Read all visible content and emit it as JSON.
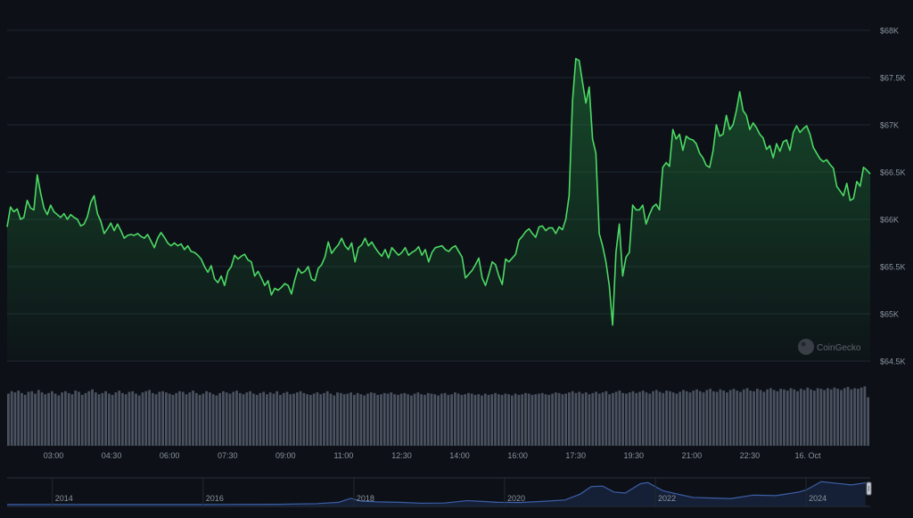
{
  "colors": {
    "background": "#0d1117",
    "grid": "#1f2630",
    "axis_text": "#8a939e",
    "price_line": "#4cd964",
    "price_fill_top": "#1f7a3a",
    "volume_bar": "#4a5260",
    "navigator_line": "#3c5fa8",
    "navigator_fill": "#1a2a4a"
  },
  "watermark": {
    "text": "CoinGecko",
    "icon": "coingecko-logo-icon"
  },
  "chart_data": [
    {
      "type": "line",
      "title": "",
      "xlabel": "",
      "ylabel": "",
      "y_axis_position": "right",
      "ylim": [
        64500,
        68000
      ],
      "y_ticks": [
        64500,
        65000,
        65500,
        66000,
        66500,
        67000,
        67500,
        68000
      ],
      "y_tick_labels": [
        "$64.5K",
        "$65K",
        "$65.5K",
        "$66K",
        "$66.5K",
        "$67K",
        "$67.5K",
        "$68K"
      ],
      "x_tick_labels": [
        "03:00",
        "04:30",
        "06:00",
        "07:30",
        "09:00",
        "11:00",
        "12:30",
        "14:00",
        "16:00",
        "17:30",
        "19:30",
        "21:00",
        "22:30",
        "16. Oct"
      ],
      "grid": true,
      "series": [
        {
          "values": [
            65920,
            66130,
            66080,
            66110,
            66000,
            66020,
            66200,
            66120,
            66100,
            66470,
            66280,
            66120,
            66050,
            66150,
            66080,
            66050,
            66020,
            66060,
            66000,
            66050,
            66020,
            66000,
            65930,
            65950,
            66030,
            66180,
            66250,
            66060,
            65980,
            65850,
            65900,
            65960,
            65880,
            65950,
            65880,
            65800,
            65830,
            65840,
            65830,
            65850,
            65820,
            65800,
            65840,
            65770,
            65700,
            65800,
            65860,
            65810,
            65750,
            65720,
            65750,
            65720,
            65740,
            65680,
            65720,
            65660,
            65650,
            65620,
            65580,
            65500,
            65440,
            65510,
            65370,
            65330,
            65400,
            65300,
            65450,
            65500,
            65620,
            65580,
            65610,
            65630,
            65570,
            65550,
            65400,
            65450,
            65380,
            65300,
            65350,
            65200,
            65270,
            65250,
            65280,
            65320,
            65300,
            65210,
            65360,
            65480,
            65430,
            65450,
            65500,
            65370,
            65350,
            65480,
            65520,
            65600,
            65760,
            65640,
            65690,
            65730,
            65800,
            65720,
            65680,
            65750,
            65550,
            65700,
            65730,
            65800,
            65720,
            65760,
            65700,
            65650,
            65610,
            65680,
            65590,
            65700,
            65660,
            65620,
            65650,
            65700,
            65620,
            65650,
            65670,
            65710,
            65620,
            65680,
            65550,
            65650,
            65700,
            65710,
            65720,
            65680,
            65660,
            65700,
            65720,
            65660,
            65600,
            65380,
            65420,
            65460,
            65520,
            65590,
            65380,
            65300,
            65420,
            65550,
            65520,
            65400,
            65310,
            65580,
            65550,
            65590,
            65630,
            65780,
            65820,
            65870,
            65900,
            65850,
            65810,
            65920,
            65930,
            65880,
            65910,
            65910,
            65850,
            65920,
            65890,
            66000,
            66250,
            67250,
            67700,
            67680,
            67450,
            67230,
            67400,
            66850,
            66700,
            65850,
            65720,
            65550,
            65300,
            64880,
            65650,
            65950,
            65400,
            65600,
            65650,
            66150,
            66100,
            66100,
            66150,
            65950,
            66050,
            66130,
            66160,
            66100,
            66550,
            66600,
            66560,
            66950,
            66850,
            66900,
            66730,
            66880,
            66850,
            66840,
            66800,
            66700,
            66650,
            66570,
            66550,
            66720,
            67000,
            66880,
            66900,
            67100,
            66950,
            67000,
            67150,
            67350,
            67150,
            67100,
            66950,
            67020,
            66970,
            66900,
            66860,
            66740,
            66780,
            66650,
            66800,
            66720,
            66820,
            66840,
            66730,
            66920,
            66990,
            66920,
            66960,
            66990,
            66900,
            66760,
            66700,
            66640,
            66610,
            66630,
            66580,
            66540,
            66350,
            66300,
            66250,
            66380,
            66200,
            66220,
            66400,
            66350,
            66550,
            66520,
            66480
          ]
        }
      ]
    },
    {
      "type": "bar",
      "title": "",
      "description_series": "volume",
      "ylim": [
        0,
        1
      ],
      "values": [
        0.86,
        0.9,
        0.88,
        0.91,
        0.87,
        0.84,
        0.89,
        0.9,
        0.86,
        0.92,
        0.88,
        0.85,
        0.87,
        0.9,
        0.86,
        0.83,
        0.88,
        0.9,
        0.87,
        0.85,
        0.91,
        0.89,
        0.84,
        0.87,
        0.9,
        0.93,
        0.88,
        0.85,
        0.87,
        0.9,
        0.86,
        0.84,
        0.88,
        0.91,
        0.87,
        0.85,
        0.89,
        0.9,
        0.86,
        0.83,
        0.88,
        0.9,
        0.92,
        0.87,
        0.85,
        0.89,
        0.9,
        0.88,
        0.86,
        0.84,
        0.87,
        0.9,
        0.89,
        0.85,
        0.88,
        0.91,
        0.87,
        0.84,
        0.86,
        0.9,
        0.88,
        0.85,
        0.83,
        0.87,
        0.9,
        0.88,
        0.86,
        0.89,
        0.91,
        0.87,
        0.85,
        0.88,
        0.9,
        0.86,
        0.84,
        0.87,
        0.89,
        0.85,
        0.88,
        0.86,
        0.9,
        0.84,
        0.87,
        0.89,
        0.85,
        0.86,
        0.88,
        0.9,
        0.87,
        0.85,
        0.84,
        0.86,
        0.88,
        0.85,
        0.87,
        0.9,
        0.86,
        0.83,
        0.88,
        0.87,
        0.85,
        0.86,
        0.88,
        0.84,
        0.87,
        0.85,
        0.83,
        0.86,
        0.88,
        0.87,
        0.84,
        0.85,
        0.87,
        0.86,
        0.88,
        0.85,
        0.84,
        0.86,
        0.87,
        0.85,
        0.83,
        0.86,
        0.88,
        0.85,
        0.84,
        0.87,
        0.86,
        0.85,
        0.83,
        0.86,
        0.87,
        0.84,
        0.85,
        0.88,
        0.86,
        0.84,
        0.85,
        0.87,
        0.86,
        0.84,
        0.85,
        0.83,
        0.86,
        0.84,
        0.85,
        0.87,
        0.85,
        0.84,
        0.86,
        0.85,
        0.83,
        0.86,
        0.84,
        0.85,
        0.87,
        0.86,
        0.84,
        0.85,
        0.86,
        0.87,
        0.85,
        0.84,
        0.86,
        0.88,
        0.87,
        0.85,
        0.86,
        0.88,
        0.9,
        0.87,
        0.89,
        0.86,
        0.88,
        0.85,
        0.87,
        0.89,
        0.86,
        0.88,
        0.9,
        0.85,
        0.87,
        0.89,
        0.91,
        0.87,
        0.86,
        0.88,
        0.9,
        0.87,
        0.89,
        0.91,
        0.88,
        0.86,
        0.9,
        0.92,
        0.89,
        0.87,
        0.91,
        0.9,
        0.88,
        0.86,
        0.89,
        0.92,
        0.9,
        0.88,
        0.91,
        0.93,
        0.9,
        0.88,
        0.92,
        0.94,
        0.9,
        0.89,
        0.93,
        0.91,
        0.88,
        0.92,
        0.94,
        0.91,
        0.89,
        0.93,
        0.95,
        0.91,
        0.9,
        0.94,
        0.92,
        0.89,
        0.93,
        0.95,
        0.92,
        0.9,
        0.94,
        0.93,
        0.91,
        0.95,
        0.93,
        0.9,
        0.94,
        0.92,
        0.96,
        0.93,
        0.91,
        0.95,
        0.94,
        0.92,
        0.95,
        0.93,
        0.96,
        0.94,
        0.92,
        0.95,
        0.97,
        0.93,
        0.95,
        0.94,
        0.96,
        0.98,
        0.8
      ]
    },
    {
      "type": "area",
      "title": "",
      "description_series": "navigator",
      "x_tick_labels": [
        "2014",
        "2016",
        "2018",
        "2020",
        "2022",
        "2024"
      ],
      "x_tick_years": [
        2014,
        2016,
        2018,
        2020,
        2022,
        2024
      ],
      "xlim": [
        2013.4,
        2024.85
      ],
      "x": [
        2013.4,
        2014.0,
        2014.5,
        2015.0,
        2015.5,
        2016.0,
        2016.5,
        2017.0,
        2017.5,
        2017.8,
        2017.96,
        2018.1,
        2018.3,
        2018.6,
        2018.9,
        2019.2,
        2019.5,
        2019.7,
        2019.9,
        2020.2,
        2020.5,
        2020.8,
        2021.0,
        2021.15,
        2021.3,
        2021.45,
        2021.6,
        2021.8,
        2021.9,
        2022.1,
        2022.3,
        2022.5,
        2022.8,
        2023.0,
        2023.3,
        2023.6,
        2023.9,
        2024.0,
        2024.2,
        2024.4,
        2024.6,
        2024.79
      ],
      "values": [
        0.006,
        0.008,
        0.005,
        0.004,
        0.004,
        0.006,
        0.009,
        0.015,
        0.04,
        0.1,
        0.27,
        0.15,
        0.12,
        0.1,
        0.06,
        0.07,
        0.17,
        0.14,
        0.1,
        0.09,
        0.14,
        0.2,
        0.45,
        0.78,
        0.8,
        0.54,
        0.5,
        0.9,
        0.95,
        0.6,
        0.45,
        0.31,
        0.28,
        0.26,
        0.41,
        0.39,
        0.54,
        0.63,
        0.99,
        0.92,
        0.85,
        0.94
      ]
    }
  ]
}
